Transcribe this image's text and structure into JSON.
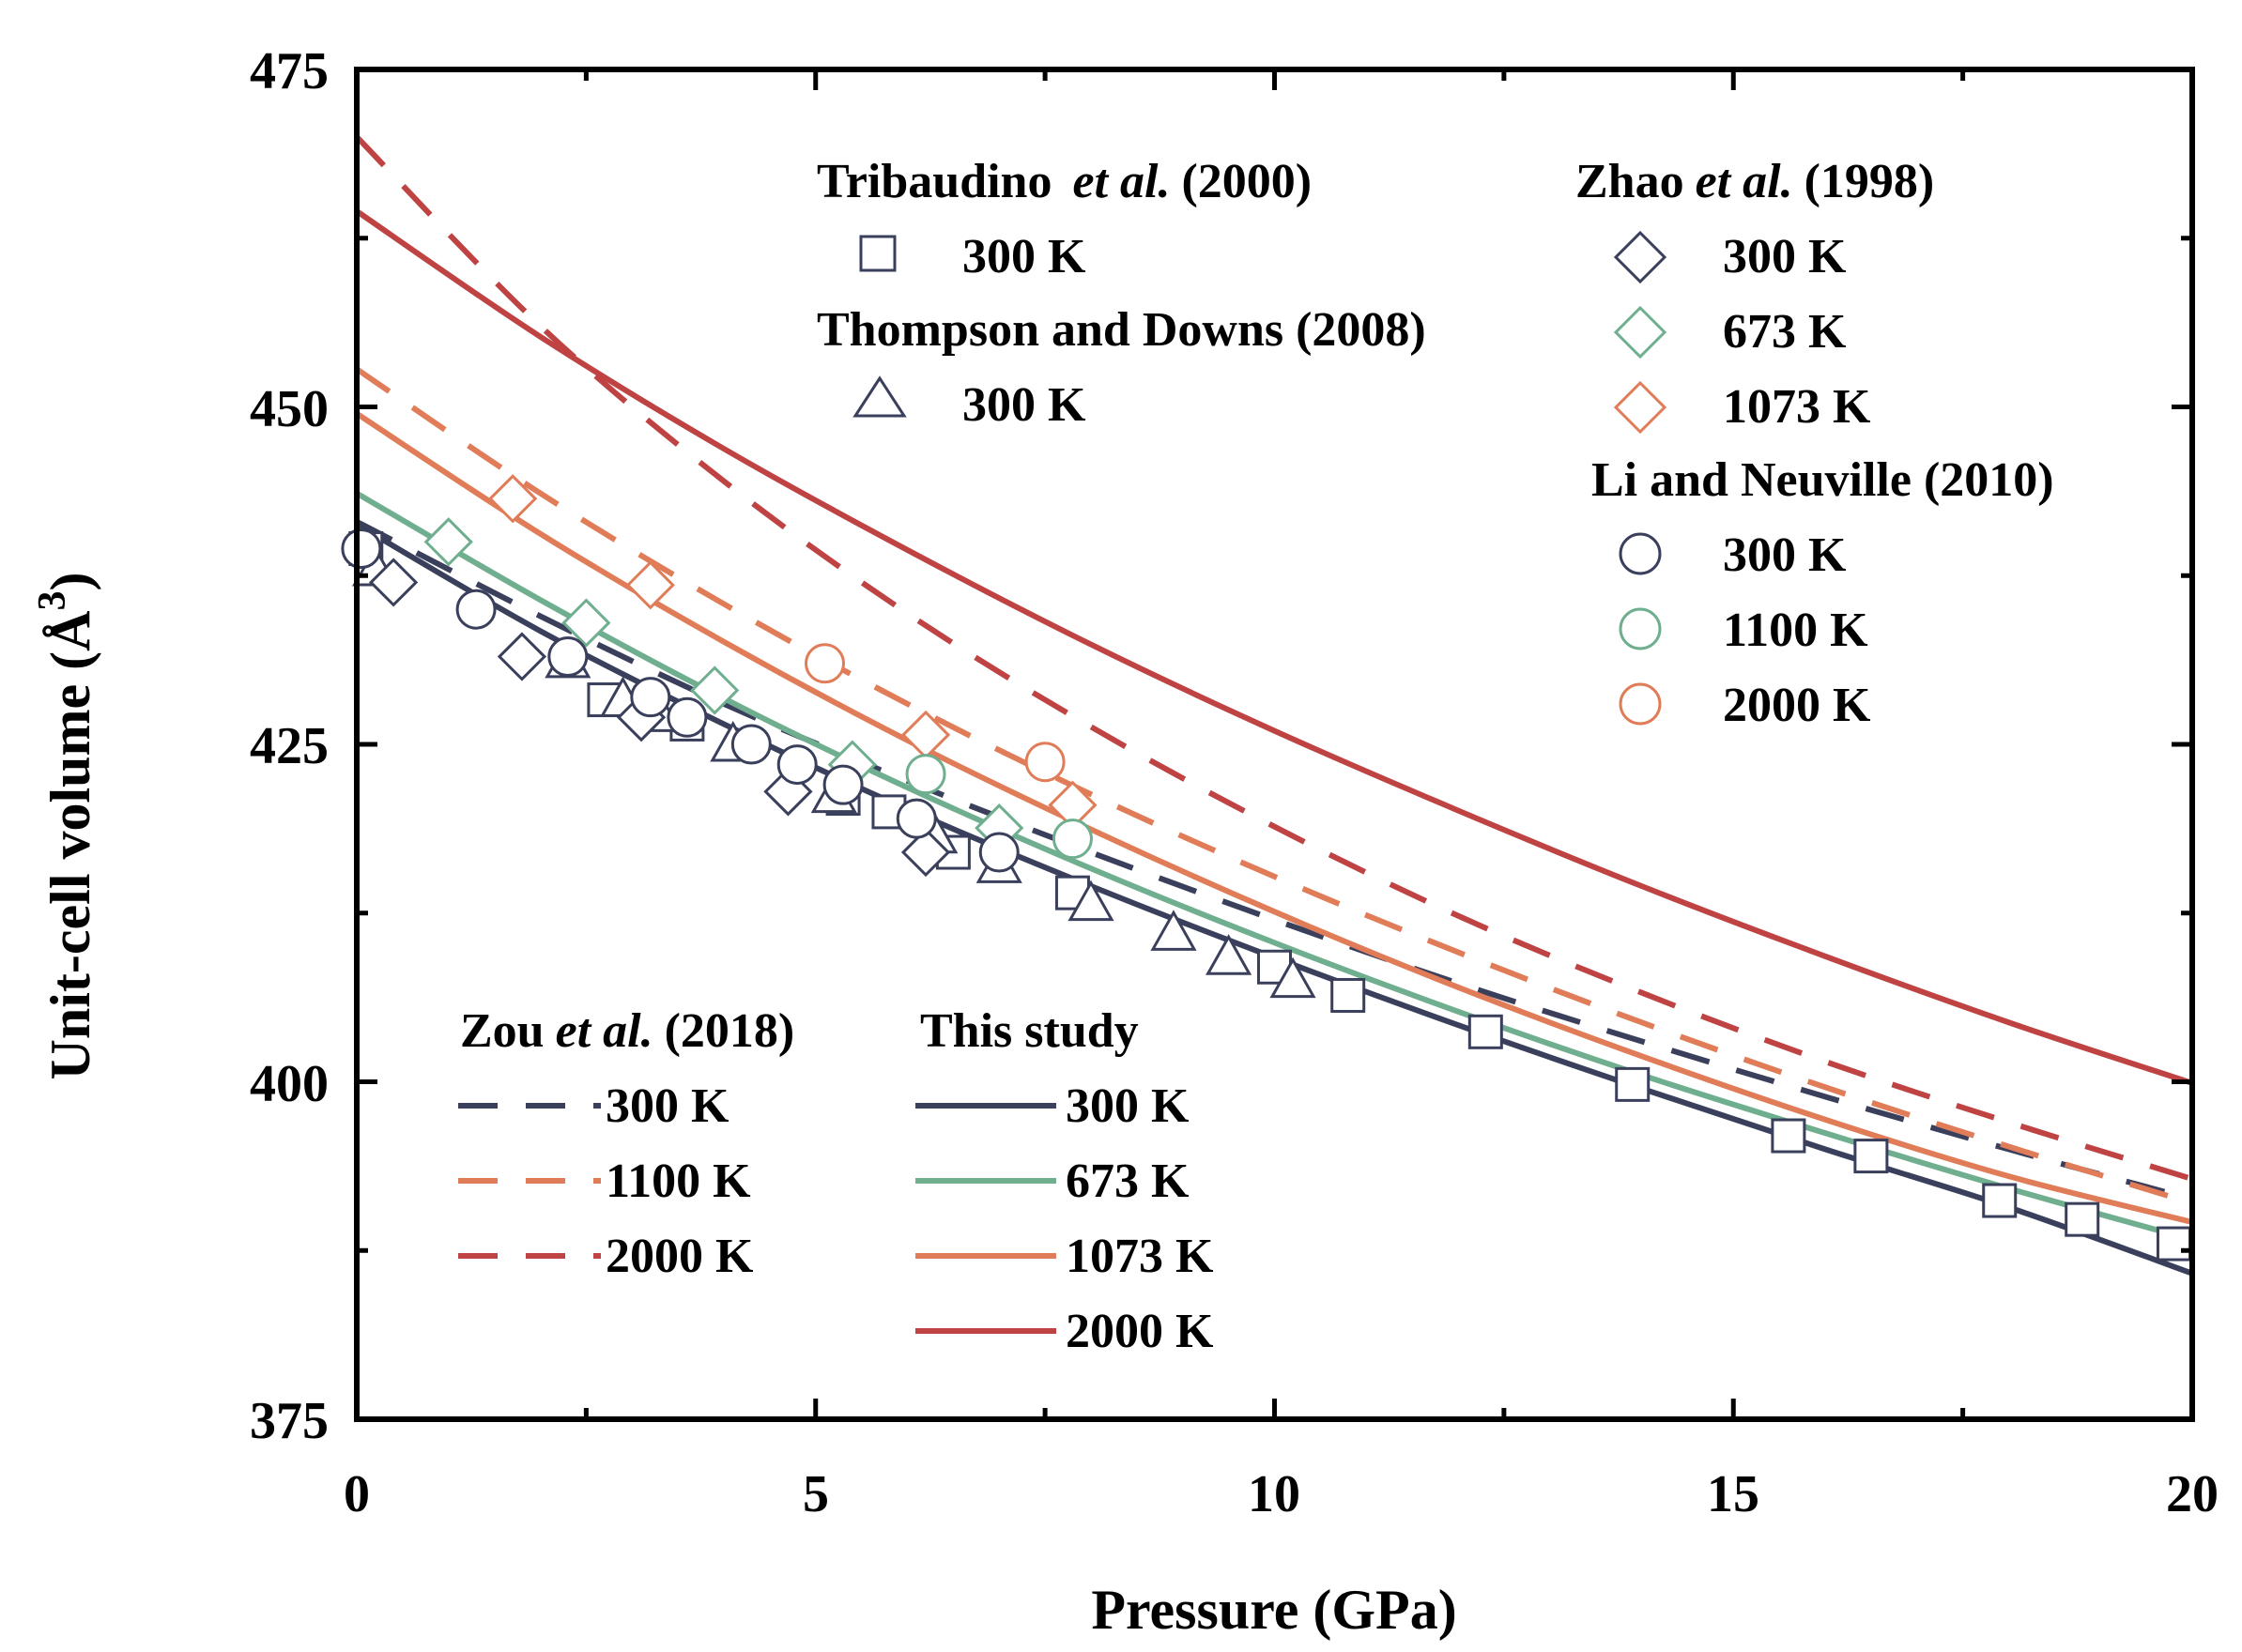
{
  "chart_data": {
    "type": "line",
    "title": "",
    "xlabel": "Pressure (GPa)",
    "ylabel": "Unit-cell volume (Å³)",
    "ylabel_parts": {
      "main": "Unit-cell volume (Å",
      "sup": "3",
      "close": ")"
    },
    "xlim": [
      0,
      20
    ],
    "ylim": [
      375,
      475
    ],
    "xticks": [
      "0",
      "5",
      "10",
      "15",
      "20"
    ],
    "yticks": [
      "375",
      "400",
      "425",
      "450",
      "475"
    ],
    "colors": {
      "navy": "#3a3f5c",
      "green": "#6fae8e",
      "orange": "#e07c57",
      "red": "#bf4343"
    },
    "lines": [
      {
        "name": "Zou et al. (2018) 300 K",
        "style": "dashed",
        "color": "navy",
        "x": [
          0,
          2,
          4,
          6,
          8,
          10,
          12,
          14,
          16,
          18,
          20
        ],
        "y": [
          441.5,
          434.5,
          428.0,
          422.3,
          417.0,
          412.0,
          407.3,
          403.0,
          398.9,
          395.0,
          391.3
        ]
      },
      {
        "name": "Zou et al. (2018) 1100 K",
        "style": "dashed",
        "color": "orange",
        "x": [
          0,
          2,
          4,
          6,
          8,
          10,
          12,
          14,
          16,
          18,
          20
        ],
        "y": [
          452.8,
          443.6,
          435.4,
          428.0,
          421.3,
          415.2,
          409.6,
          404.4,
          399.6,
          395.2,
          391.0
        ]
      },
      {
        "name": "Zou et al. (2018) 2000 K",
        "style": "dashed",
        "color": "red",
        "x": [
          0,
          2,
          4,
          6,
          8,
          10,
          12,
          14,
          16,
          18,
          20
        ],
        "y": [
          470.0,
          456.0,
          444.5,
          434.7,
          426.3,
          418.9,
          412.3,
          406.6,
          401.5,
          397.0,
          392.8
        ]
      },
      {
        "name": "This study 300 K",
        "style": "solid",
        "color": "navy",
        "x": [
          0,
          2,
          4,
          6,
          8,
          10,
          12,
          14,
          16,
          18,
          20
        ],
        "y": [
          441.3,
          433.4,
          426.5,
          420.2,
          414.5,
          409.2,
          404.2,
          399.5,
          395.0,
          390.7,
          385.8
        ]
      },
      {
        "name": "This study 673 K",
        "style": "solid",
        "color": "green",
        "x": [
          0,
          2,
          4,
          6,
          8,
          10,
          12,
          14,
          16,
          18,
          20
        ],
        "y": [
          443.6,
          435.7,
          428.4,
          421.8,
          415.8,
          410.3,
          405.2,
          400.5,
          396.2,
          392.1,
          388.3
        ]
      },
      {
        "name": "This study 1073 K",
        "style": "solid",
        "color": "orange",
        "x": [
          0,
          2,
          4,
          6,
          8,
          10,
          12,
          14,
          16,
          18,
          20
        ],
        "y": [
          449.5,
          440.6,
          432.6,
          425.3,
          418.7,
          412.6,
          407.0,
          401.9,
          397.2,
          393.0,
          389.6
        ]
      },
      {
        "name": "This study 2000 K",
        "style": "solid",
        "color": "red",
        "x": [
          0,
          2,
          4,
          6,
          8,
          10,
          12,
          14,
          16,
          18,
          20
        ],
        "y": [
          464.5,
          455.2,
          446.9,
          439.4,
          432.4,
          426.0,
          420.1,
          414.5,
          409.3,
          404.4,
          399.9
        ]
      }
    ],
    "scatter": [
      {
        "name": "Tribaudino et al. (2000) 300 K",
        "marker": "square",
        "color": "navy",
        "x": [
          0.1,
          2.7,
          3.6,
          5.3,
          5.8,
          6.5,
          7.8,
          10.0,
          10.8,
          12.3,
          13.9,
          15.6,
          16.5,
          17.9,
          18.8,
          19.8
        ],
        "y": [
          439.5,
          428.3,
          426.5,
          421.0,
          420.0,
          417.0,
          414.0,
          408.5,
          406.4,
          403.7,
          399.8,
          396.0,
          394.5,
          391.2,
          389.8,
          388.0
        ]
      },
      {
        "name": "Thompson and Downs (2008) 300 K",
        "marker": "triangle",
        "color": "navy",
        "x": [
          0.2,
          2.3,
          2.9,
          3.3,
          4.1,
          5.2,
          6.3,
          7.0,
          8.0,
          8.9,
          9.5,
          10.2
        ],
        "y": [
          438.0,
          431.2,
          428.3,
          427.2,
          425.0,
          421.2,
          418.2,
          416.0,
          413.2,
          411.0,
          409.2,
          407.5
        ]
      },
      {
        "name": "Zhao et al. (1998) 300 K",
        "marker": "diamond",
        "color": "navy",
        "x": [
          0.4,
          1.8,
          3.1,
          4.7,
          6.2
        ],
        "y": [
          437.0,
          431.5,
          427.0,
          421.5,
          417.0
        ]
      },
      {
        "name": "Zhao et al. (1998) 673 K",
        "marker": "diamond",
        "color": "green",
        "x": [
          1.0,
          2.5,
          3.9,
          5.4,
          7.0
        ],
        "y": [
          440.0,
          434.0,
          429.0,
          423.5,
          418.8
        ]
      },
      {
        "name": "Zhao et al. (1998) 1073 K",
        "marker": "diamond",
        "color": "orange",
        "x": [
          1.7,
          3.2,
          6.2,
          7.8
        ],
        "y": [
          443.2,
          436.8,
          425.7,
          420.5
        ]
      },
      {
        "name": "Li and Neuville (2010) 300 K",
        "marker": "circle",
        "color": "navy",
        "x": [
          0.05,
          1.3,
          2.3,
          3.2,
          3.6,
          4.3,
          4.8,
          5.3,
          6.1,
          7.0
        ],
        "y": [
          439.5,
          435.0,
          431.5,
          428.5,
          427.0,
          425.0,
          423.5,
          422.0,
          419.5,
          417.0
        ]
      },
      {
        "name": "Li and Neuville (2010) 1100 K",
        "marker": "circle",
        "color": "green",
        "x": [
          6.2,
          7.8
        ],
        "y": [
          422.8,
          418.0
        ]
      },
      {
        "name": "Li and Neuville (2010) 2000 K",
        "marker": "circle",
        "color": "orange",
        "x": [
          5.1,
          7.5
        ],
        "y": [
          431.0,
          423.7
        ]
      }
    ],
    "legend_top_left": {
      "trib_title": "Tribaudino",
      "trib_etal": "et al.",
      "trib_year": "(2000)",
      "trib_300": "300 K",
      "thompson_title": "Thompson and Downs (2008)",
      "thompson_300": "300 K"
    },
    "legend_top_right": {
      "zhao_title": "Zhao",
      "zhao_etal": "et al.",
      "zhao_year": "(1998)",
      "zhao_300": "300 K",
      "zhao_673": "673 K",
      "zhao_1073": "1073 K",
      "li_title": "Li and Neuville (2010)",
      "li_300": "300 K",
      "li_1100": "1100 K",
      "li_2000": "2000 K"
    },
    "legend_bottom": {
      "zou_title": "Zou",
      "zou_etal": "et al.",
      "zou_year": "(2018)",
      "zou_300": "300 K",
      "zou_1100": "1100 K",
      "zou_2000": "2000 K",
      "this_title": "This study",
      "this_300": "300 K",
      "this_673": "673 K",
      "this_1073": "1073 K",
      "this_2000": "2000 K"
    }
  }
}
